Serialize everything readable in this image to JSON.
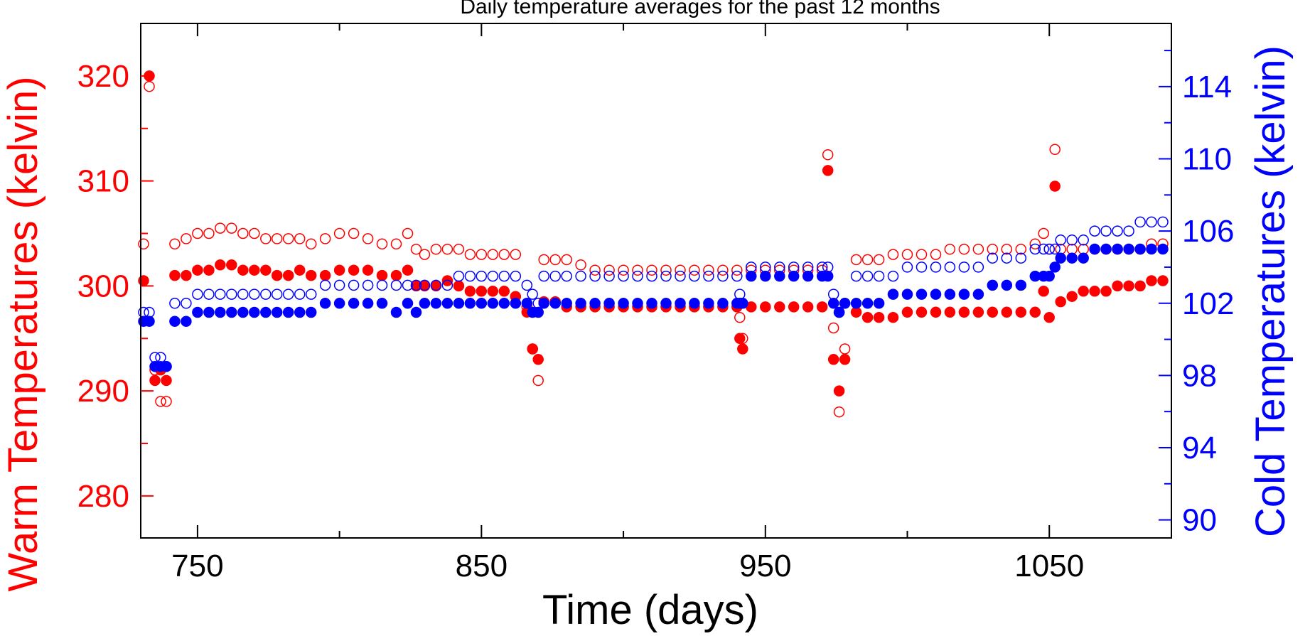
{
  "chart_data": {
    "type": "scatter",
    "title": "Daily temperature averages for the past 12 months",
    "xlabel": "Time (days)",
    "ylabel_left": "Warm Temperatures (kelvin)",
    "ylabel_right": "Cold Temperatures (kelvin)",
    "xlim": [
      730,
      1093
    ],
    "ylim_left": [
      276,
      325
    ],
    "ylim_right": [
      89,
      117.5
    ],
    "xticks": [
      750,
      850,
      950,
      1050
    ],
    "xtick_labels": [
      "750",
      "850",
      "950",
      "1050"
    ],
    "yticks_left": [
      280,
      290,
      300,
      310,
      320
    ],
    "ytick_labels_left": [
      "280",
      "290",
      "300",
      "310",
      "320"
    ],
    "yticks_right": [
      90,
      94,
      98,
      102,
      106,
      110,
      114
    ],
    "ytick_labels_right": [
      "90",
      "94",
      "98",
      "102",
      "106",
      "110",
      "114"
    ],
    "grid": false,
    "colors": {
      "warm": "#ff0000",
      "cold": "#0000ff",
      "axis": "#000000"
    },
    "series": [
      {
        "axis": "left",
        "marker": "open",
        "color": "#ff0000",
        "x": [
          731,
          733,
          735,
          737,
          739,
          742,
          746,
          750,
          754,
          758,
          762,
          766,
          770,
          774,
          778,
          782,
          786,
          790,
          795,
          800,
          805,
          810,
          815,
          820,
          824,
          827,
          830,
          834,
          838,
          842,
          846,
          850,
          854,
          858,
          862,
          866,
          868,
          870,
          872,
          876,
          880,
          885,
          890,
          895,
          900,
          905,
          910,
          915,
          920,
          925,
          930,
          935,
          940,
          941,
          942,
          945,
          950,
          955,
          960,
          965,
          970,
          972,
          974,
          976,
          978,
          982,
          986,
          990,
          995,
          1000,
          1005,
          1010,
          1015,
          1020,
          1025,
          1030,
          1035,
          1040,
          1045,
          1048,
          1050,
          1052,
          1054,
          1058,
          1062,
          1066,
          1070,
          1074,
          1078,
          1082,
          1086,
          1090
        ],
        "y": [
          304,
          319,
          292,
          289,
          289,
          304,
          304.5,
          305,
          305,
          305.5,
          305.5,
          305,
          305,
          304.5,
          304.5,
          304.5,
          304.5,
          304,
          304.5,
          305,
          305,
          304.5,
          304,
          304,
          305,
          303.5,
          303,
          303.5,
          303.5,
          303.5,
          303,
          303,
          303,
          303,
          303,
          298,
          294,
          291,
          302.5,
          302.5,
          302.5,
          302,
          301.5,
          301.5,
          301.5,
          301.5,
          301.5,
          301.5,
          301.5,
          301.5,
          301.5,
          301.5,
          301.5,
          297,
          295,
          301.5,
          301.5,
          301.5,
          301.5,
          301.5,
          301.5,
          312.5,
          296,
          288,
          294,
          302.5,
          302.5,
          302.5,
          303,
          303,
          303,
          303,
          303.5,
          303.5,
          303.5,
          303.5,
          303.5,
          303.5,
          304,
          305,
          303.5,
          313,
          303.5,
          303.5,
          303.5,
          303.5,
          303.5,
          303.5,
          303.5,
          303.5,
          304,
          304
        ]
      },
      {
        "axis": "left",
        "marker": "filled",
        "color": "#ff0000",
        "x": [
          731,
          733,
          735,
          737,
          739,
          742,
          746,
          750,
          754,
          758,
          762,
          766,
          770,
          774,
          778,
          782,
          786,
          790,
          795,
          800,
          805,
          810,
          815,
          820,
          824,
          827,
          830,
          834,
          838,
          842,
          846,
          850,
          854,
          858,
          862,
          866,
          868,
          870,
          872,
          876,
          880,
          885,
          890,
          895,
          900,
          905,
          910,
          915,
          920,
          925,
          930,
          935,
          940,
          941,
          942,
          945,
          950,
          955,
          960,
          965,
          970,
          972,
          974,
          976,
          978,
          982,
          986,
          990,
          995,
          1000,
          1005,
          1010,
          1015,
          1020,
          1025,
          1030,
          1035,
          1040,
          1045,
          1048,
          1050,
          1052,
          1054,
          1058,
          1062,
          1066,
          1070,
          1074,
          1078,
          1082,
          1086,
          1090
        ],
        "y": [
          300.5,
          320,
          291,
          292,
          291,
          301,
          301,
          301.5,
          301.5,
          302,
          302,
          301.5,
          301.5,
          301.5,
          301,
          301,
          301.5,
          301,
          301,
          301.5,
          301.5,
          301.5,
          301,
          301,
          301.5,
          300,
          300,
          300,
          300.5,
          300,
          299.5,
          299.5,
          299.5,
          299.5,
          299,
          297.5,
          294,
          293,
          298.5,
          298.5,
          298,
          298,
          298,
          298,
          298,
          298,
          298,
          298,
          298,
          298,
          298,
          298,
          298,
          295,
          294,
          298,
          298,
          298,
          298,
          298,
          298,
          311,
          293,
          290,
          293,
          297.5,
          297,
          297,
          297,
          297.5,
          297.5,
          297.5,
          297.5,
          297.5,
          297.5,
          297.5,
          297.5,
          297.5,
          297.5,
          299.5,
          297,
          309.5,
          298.5,
          299,
          299.5,
          299.5,
          299.5,
          300,
          300,
          300,
          300.5,
          300.5
        ]
      },
      {
        "axis": "right",
        "marker": "open",
        "color": "#0000ff",
        "x": [
          731,
          733,
          735,
          737,
          739,
          742,
          746,
          750,
          754,
          758,
          762,
          766,
          770,
          774,
          778,
          782,
          786,
          790,
          795,
          800,
          805,
          810,
          815,
          820,
          824,
          827,
          830,
          834,
          838,
          842,
          846,
          850,
          854,
          858,
          862,
          866,
          868,
          870,
          872,
          876,
          880,
          885,
          890,
          895,
          900,
          905,
          910,
          915,
          920,
          925,
          930,
          935,
          940,
          941,
          942,
          945,
          950,
          955,
          960,
          965,
          970,
          972,
          974,
          976,
          978,
          982,
          986,
          990,
          995,
          1000,
          1005,
          1010,
          1015,
          1020,
          1025,
          1030,
          1035,
          1040,
          1045,
          1048,
          1050,
          1052,
          1054,
          1058,
          1062,
          1066,
          1070,
          1074,
          1078,
          1082,
          1086,
          1090
        ],
        "y": [
          101.5,
          101.5,
          99,
          99,
          98.5,
          102,
          102,
          102.5,
          102.5,
          102.5,
          102.5,
          102.5,
          102.5,
          102.5,
          102.5,
          102.5,
          102.5,
          102.5,
          103,
          103,
          103,
          103,
          103,
          103,
          103,
          103,
          103,
          103,
          103,
          103.5,
          103.5,
          103.5,
          103.5,
          103.5,
          103.5,
          103,
          102.5,
          102,
          103.5,
          103.5,
          103.5,
          103.5,
          103.5,
          103.5,
          103.5,
          103.5,
          103.5,
          103.5,
          103.5,
          103.5,
          103.5,
          103.5,
          103.5,
          102.5,
          102,
          104,
          104,
          104,
          104,
          104,
          104,
          104,
          102.5,
          101.5,
          102,
          103.5,
          103.5,
          103.5,
          103.5,
          104,
          104,
          104,
          104,
          104,
          104,
          104.5,
          104.5,
          104.5,
          105,
          105,
          105,
          105,
          105.5,
          105.5,
          105.5,
          106,
          106,
          106,
          106,
          106.5,
          106.5,
          106.5
        ]
      },
      {
        "axis": "right",
        "marker": "filled",
        "color": "#0000ff",
        "x": [
          731,
          733,
          735,
          737,
          739,
          742,
          746,
          750,
          754,
          758,
          762,
          766,
          770,
          774,
          778,
          782,
          786,
          790,
          795,
          800,
          805,
          810,
          815,
          820,
          824,
          827,
          830,
          834,
          838,
          842,
          846,
          850,
          854,
          858,
          862,
          866,
          868,
          870,
          872,
          876,
          880,
          885,
          890,
          895,
          900,
          905,
          910,
          915,
          920,
          925,
          930,
          935,
          940,
          941,
          942,
          945,
          950,
          955,
          960,
          965,
          970,
          972,
          974,
          976,
          978,
          982,
          986,
          990,
          995,
          1000,
          1005,
          1010,
          1015,
          1020,
          1025,
          1030,
          1035,
          1040,
          1045,
          1048,
          1050,
          1052,
          1054,
          1058,
          1062,
          1066,
          1070,
          1074,
          1078,
          1082,
          1086,
          1090
        ],
        "y": [
          101,
          101,
          98.5,
          98.5,
          98.5,
          101,
          101,
          101.5,
          101.5,
          101.5,
          101.5,
          101.5,
          101.5,
          101.5,
          101.5,
          101.5,
          101.5,
          101.5,
          102,
          102,
          102,
          102,
          102,
          101.5,
          102,
          101.5,
          102,
          102,
          102,
          102,
          102,
          102,
          102,
          102,
          102,
          102,
          101.5,
          101.5,
          102,
          102,
          102,
          102,
          102,
          102,
          102,
          102,
          102,
          102,
          102,
          102,
          102,
          102,
          102,
          102,
          102,
          103.5,
          103.5,
          103.5,
          103.5,
          103.5,
          103.5,
          103.5,
          102,
          101.5,
          102,
          102,
          102,
          102,
          102.5,
          102.5,
          102.5,
          102.5,
          102.5,
          102.5,
          102.5,
          103,
          103,
          103,
          103.5,
          103.5,
          103.5,
          104,
          104.5,
          104.5,
          104.5,
          105,
          105,
          105,
          105,
          105,
          105,
          105
        ]
      }
    ]
  }
}
